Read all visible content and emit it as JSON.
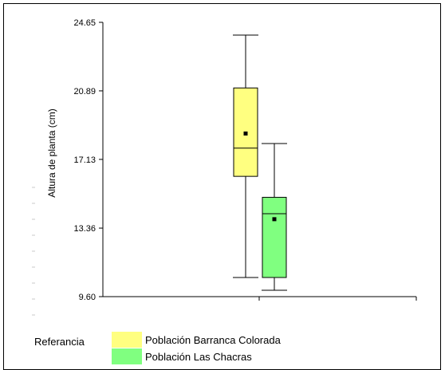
{
  "chart_data": {
    "type": "boxplot",
    "ylabel": "Altura de planta (cm)",
    "xlabel": "",
    "ylim": [
      9.6,
      24.65
    ],
    "yticks": [
      "9.60",
      "13.36",
      "17.13",
      "20.89",
      "24.65"
    ],
    "ytick_values": [
      9.6,
      13.36,
      17.13,
      20.89,
      24.65
    ],
    "grid": false,
    "legend_position": "bottom-left",
    "series": [
      {
        "name": "Población Barranca Colorada",
        "color": "#ffff80",
        "min": 10.65,
        "q1": 16.2,
        "median": 17.75,
        "q3": 21.05,
        "max": 23.95,
        "mean": 18.55
      },
      {
        "name": "Población Las Chacras",
        "color": "#80ff80",
        "min": 9.95,
        "q1": 10.65,
        "median": 14.15,
        "q3": 15.05,
        "max": 18.0,
        "mean": 13.85
      }
    ]
  },
  "legend": {
    "title": "Referancia",
    "items": [
      {
        "label": "Población Barranca Colorada",
        "color": "#ffff80"
      },
      {
        "label": "Población Las Chacras",
        "color": "#80ff80"
      }
    ]
  }
}
